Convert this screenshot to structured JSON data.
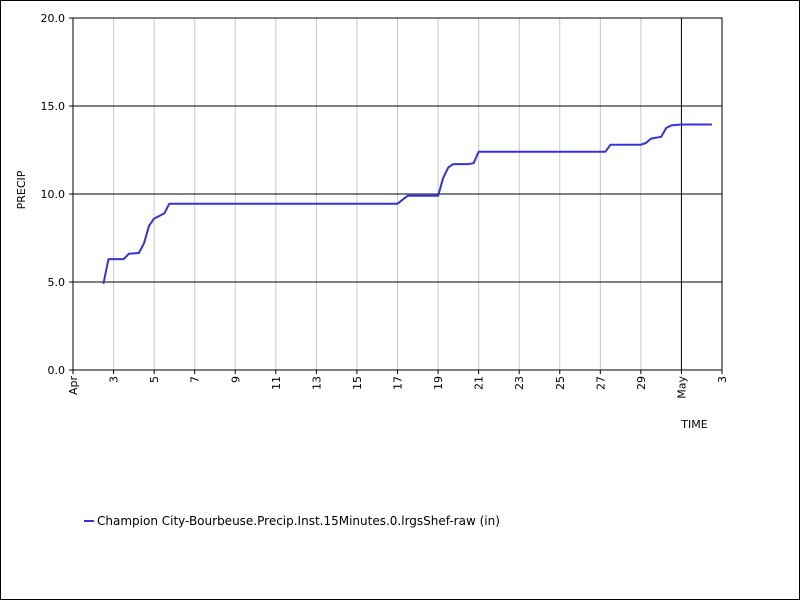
{
  "chart_data": {
    "type": "line",
    "title": "",
    "xlabel": "TIME",
    "ylabel": "PRECIP",
    "ylim": [
      0,
      20
    ],
    "xlim": [
      "2024-04-01",
      "2024-05-03"
    ],
    "grid": true,
    "legend_position": "bottom-left",
    "y_ticks": [
      {
        "value": 0,
        "label": "0.0"
      },
      {
        "value": 5,
        "label": "5.0"
      },
      {
        "value": 10,
        "label": "10.0"
      },
      {
        "value": 15,
        "label": "15.0"
      },
      {
        "value": 20,
        "label": "20.0"
      }
    ],
    "x_ticks": [
      {
        "date": "2024-04-01",
        "label": "Apr"
      },
      {
        "date": "2024-04-03",
        "label": "3"
      },
      {
        "date": "2024-04-05",
        "label": "5"
      },
      {
        "date": "2024-04-07",
        "label": "7"
      },
      {
        "date": "2024-04-09",
        "label": "9"
      },
      {
        "date": "2024-04-11",
        "label": "11"
      },
      {
        "date": "2024-04-13",
        "label": "13"
      },
      {
        "date": "2024-04-15",
        "label": "15"
      },
      {
        "date": "2024-04-17",
        "label": "17"
      },
      {
        "date": "2024-04-19",
        "label": "19"
      },
      {
        "date": "2024-04-21",
        "label": "21"
      },
      {
        "date": "2024-04-23",
        "label": "23"
      },
      {
        "date": "2024-04-25",
        "label": "25"
      },
      {
        "date": "2024-04-27",
        "label": "27"
      },
      {
        "date": "2024-04-29",
        "label": "29"
      },
      {
        "date": "2024-05-01",
        "label": "May"
      },
      {
        "date": "2024-05-03",
        "label": "3"
      }
    ],
    "series": [
      {
        "name": "Champion City-Bourbeuse.Precip.Inst.15Minutes.0.lrgsShef-raw (in)",
        "color": "#3333dd",
        "points": [
          {
            "x": "2024-04-02T12:00",
            "y": 4.9
          },
          {
            "x": "2024-04-02T18:00",
            "y": 6.3
          },
          {
            "x": "2024-04-03T12:00",
            "y": 6.3
          },
          {
            "x": "2024-04-03T18:00",
            "y": 6.6
          },
          {
            "x": "2024-04-04T06:00",
            "y": 6.65
          },
          {
            "x": "2024-04-04T12:00",
            "y": 7.2
          },
          {
            "x": "2024-04-04T18:00",
            "y": 8.2
          },
          {
            "x": "2024-04-05T00:00",
            "y": 8.6
          },
          {
            "x": "2024-04-05T12:00",
            "y": 8.9
          },
          {
            "x": "2024-04-05T18:00",
            "y": 9.45
          },
          {
            "x": "2024-04-17T00:00",
            "y": 9.45
          },
          {
            "x": "2024-04-17T12:00",
            "y": 9.9
          },
          {
            "x": "2024-04-19T00:00",
            "y": 9.9
          },
          {
            "x": "2024-04-19T06:00",
            "y": 10.9
          },
          {
            "x": "2024-04-19T12:00",
            "y": 11.5
          },
          {
            "x": "2024-04-19T18:00",
            "y": 11.7
          },
          {
            "x": "2024-04-20T12:00",
            "y": 11.7
          },
          {
            "x": "2024-04-20T18:00",
            "y": 11.75
          },
          {
            "x": "2024-04-21T00:00",
            "y": 12.4
          },
          {
            "x": "2024-04-27T06:00",
            "y": 12.4
          },
          {
            "x": "2024-04-27T12:00",
            "y": 12.8
          },
          {
            "x": "2024-04-29T00:00",
            "y": 12.8
          },
          {
            "x": "2024-04-29T06:00",
            "y": 12.9
          },
          {
            "x": "2024-04-29T12:00",
            "y": 13.15
          },
          {
            "x": "2024-04-30T00:00",
            "y": 13.25
          },
          {
            "x": "2024-04-30T06:00",
            "y": 13.75
          },
          {
            "x": "2024-04-30T12:00",
            "y": 13.9
          },
          {
            "x": "2024-05-01T00:00",
            "y": 13.95
          },
          {
            "x": "2024-05-02T12:00",
            "y": 13.95
          }
        ]
      }
    ],
    "marker_lines": [
      {
        "date": "2024-05-01"
      }
    ]
  }
}
